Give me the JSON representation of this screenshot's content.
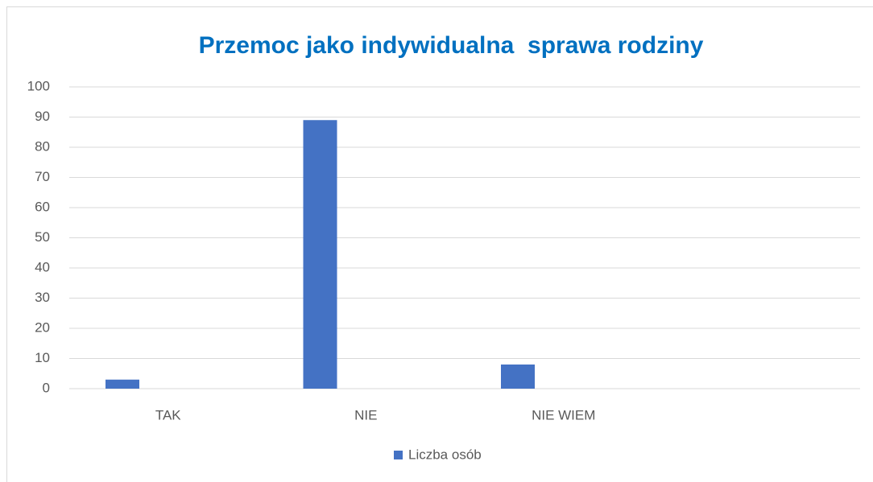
{
  "chart_data": {
    "type": "bar",
    "title": "Przemoc jako indywidualna  sprawa rodziny",
    "categories": [
      "TAK",
      "NIE",
      "NIE WIEM",
      null
    ],
    "series": [
      {
        "name": "Liczba osób",
        "color": "#4472c4",
        "values": [
          3,
          89,
          8,
          null
        ]
      }
    ],
    "ylim": [
      0,
      100
    ],
    "yticks": [
      0,
      10,
      20,
      30,
      40,
      50,
      60,
      70,
      80,
      90,
      100
    ],
    "grid": true,
    "legend": "bottom"
  }
}
